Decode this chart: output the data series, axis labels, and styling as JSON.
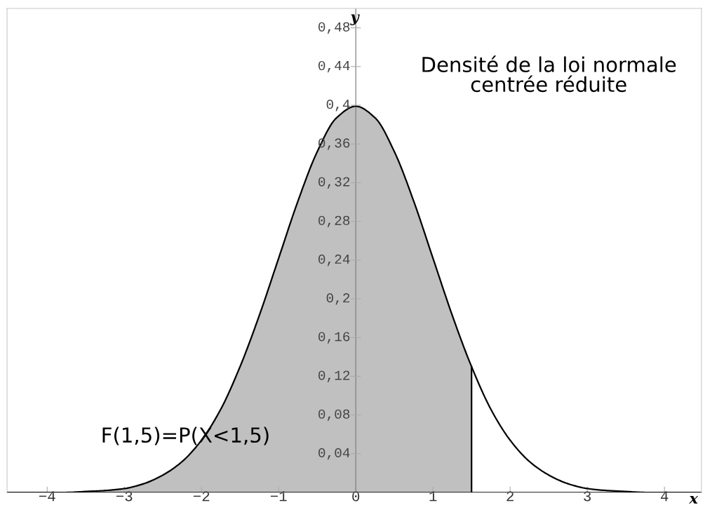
{
  "chart_data": {
    "type": "line",
    "title": "Densité de la loi normale\ncentrée réduite",
    "xlabel": "x",
    "ylabel": "y",
    "annotations": [
      "F(1,5)=P(X<1,5)"
    ],
    "xlim": [
      -4.52,
      4.48
    ],
    "ylim": [
      0,
      0.5
    ],
    "xticks": [
      {
        "value": -4,
        "label": "−4"
      },
      {
        "value": -3,
        "label": "−3"
      },
      {
        "value": -2,
        "label": "−2"
      },
      {
        "value": -1,
        "label": "−1"
      },
      0,
      1,
      2,
      3,
      4
    ],
    "yticks": [
      {
        "value": 0.04,
        "label": "0,04"
      },
      {
        "value": 0.08,
        "label": "0,08"
      },
      {
        "value": 0.12,
        "label": "0,12"
      },
      {
        "value": 0.16,
        "label": "0,16"
      },
      {
        "value": 0.2,
        "label": "0,2"
      },
      {
        "value": 0.24,
        "label": "0,24"
      },
      {
        "value": 0.28,
        "label": "0,28"
      },
      {
        "value": 0.32,
        "label": "0,32"
      },
      {
        "value": 0.36,
        "label": "0,36"
      },
      {
        "value": 0.4,
        "label": "0,4"
      },
      {
        "value": 0.44,
        "label": "0,44"
      },
      {
        "value": 0.48,
        "label": "0,48"
      }
    ],
    "grid": false,
    "legend": false,
    "marker": "none",
    "line_style": "solid",
    "series": [
      {
        "type": "area",
        "color": "#c0c0c0",
        "x": [
          -4.5,
          -4.25,
          -4,
          -3.75,
          -3.5,
          -3.25,
          -3,
          -2.75,
          -2.5,
          -2.25,
          -2,
          -1.75,
          -1.5,
          -1.25,
          -1,
          -0.75,
          -0.5,
          -0.25,
          0,
          0.25,
          0.5,
          0.75,
          1,
          1.25,
          1.5
        ],
        "values": [
          0,
          0,
          0,
          0,
          0.001,
          0.002,
          0.004,
          0.009,
          0.018,
          0.032,
          0.054,
          0.086,
          0.13,
          0.183,
          0.242,
          0.301,
          0.352,
          0.387,
          0.399,
          0.387,
          0.352,
          0.301,
          0.242,
          0.183,
          0.13
        ]
      },
      {
        "type": "line",
        "color": "#000000",
        "x": [
          1.5,
          1.5
        ],
        "values": [
          0,
          0.13
        ]
      },
      {
        "color": "#000000",
        "x": [
          -4.5,
          -4.25,
          -4,
          -3.75,
          -3.5,
          -3.25,
          -3,
          -2.75,
          -2.5,
          -2.25,
          -2,
          -1.75,
          -1.5,
          -1.25,
          -1,
          -0.75,
          -0.5,
          -0.25,
          0,
          0.25,
          0.5,
          0.75,
          1,
          1.25,
          1.5,
          1.75,
          2,
          2.25,
          2.5,
          2.75,
          3,
          3.25,
          3.5,
          3.75,
          4,
          4.25,
          4.45
        ],
        "values": [
          0,
          0,
          0,
          0,
          0.001,
          0.002,
          0.004,
          0.009,
          0.018,
          0.032,
          0.054,
          0.086,
          0.13,
          0.183,
          0.242,
          0.301,
          0.352,
          0.387,
          0.399,
          0.387,
          0.352,
          0.301,
          0.242,
          0.183,
          0.13,
          0.086,
          0.054,
          0.032,
          0.018,
          0.009,
          0.004,
          0.002,
          0.001,
          0,
          0,
          0,
          0
        ]
      }
    ]
  }
}
